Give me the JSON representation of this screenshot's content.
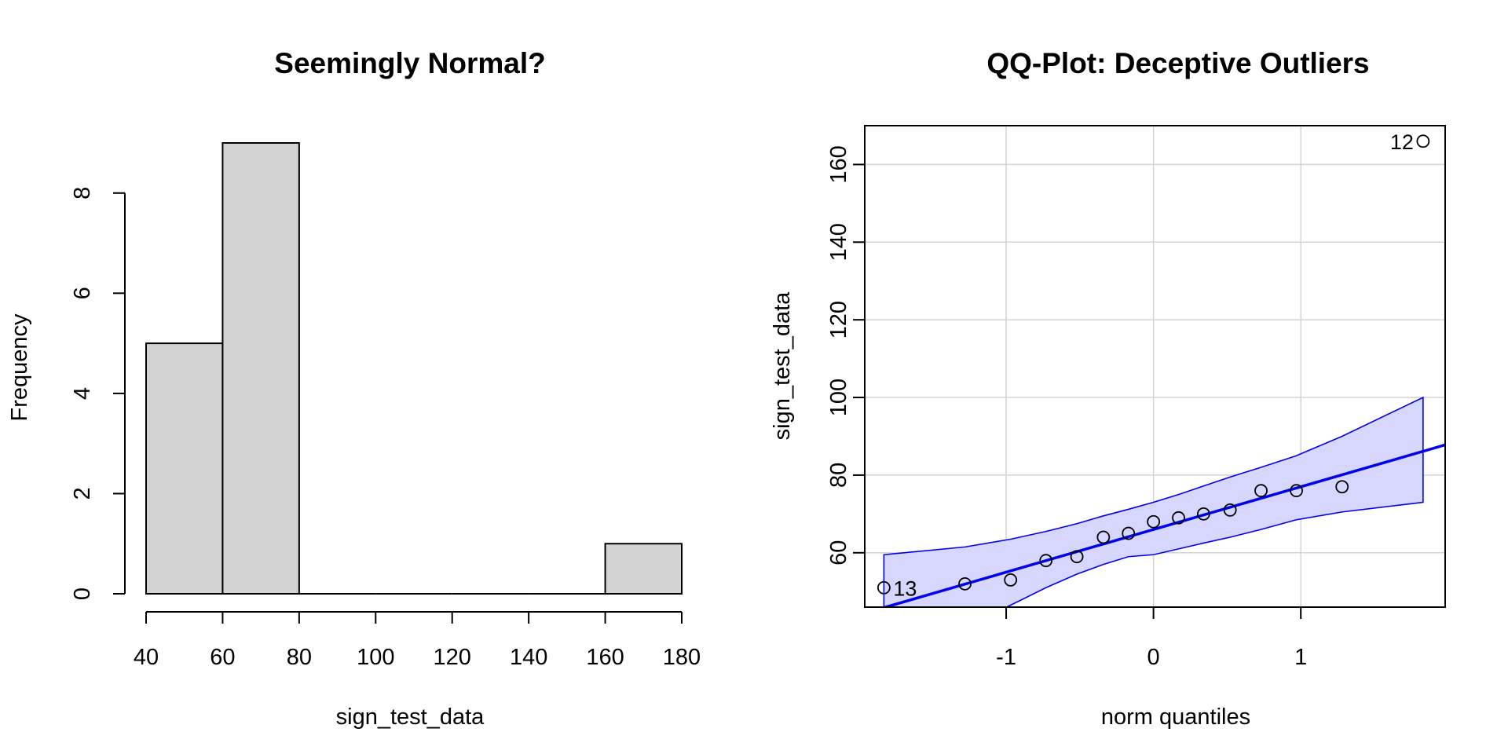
{
  "chart_data": [
    {
      "type": "bar",
      "subtype": "histogram",
      "title": "Seemingly Normal?",
      "xlabel": "sign_test_data",
      "ylabel": "Frequency",
      "bins": [
        {
          "from": 40,
          "to": 60,
          "count": 5
        },
        {
          "from": 60,
          "to": 80,
          "count": 9
        },
        {
          "from": 80,
          "to": 100,
          "count": 0
        },
        {
          "from": 100,
          "to": 120,
          "count": 0
        },
        {
          "from": 120,
          "to": 140,
          "count": 0
        },
        {
          "from": 140,
          "to": 160,
          "count": 0
        },
        {
          "from": 160,
          "to": 180,
          "count": 1
        }
      ],
      "xlim": [
        40,
        180
      ],
      "ylim": [
        0,
        9
      ],
      "x_ticks": [
        "40",
        "60",
        "80",
        "100",
        "120",
        "140",
        "160",
        "180"
      ],
      "y_ticks": [
        "0",
        "2",
        "4",
        "6",
        "8"
      ],
      "bar_color": "#d3d3d3",
      "grid": false
    },
    {
      "type": "scatter",
      "subtype": "qq-plot",
      "title": "QQ-Plot: Deceptive Outliers",
      "xlabel": "norm quantiles",
      "ylabel": "sign_test_data",
      "xlim": [
        -1.96,
        1.98
      ],
      "ylim": [
        46,
        170
      ],
      "x_ticks": [
        "-1",
        "0",
        "1"
      ],
      "y_ticks": [
        "60",
        "80",
        "100",
        "120",
        "140",
        "160"
      ],
      "points": [
        {
          "x": -1.83,
          "y": 51,
          "label": "13"
        },
        {
          "x": -1.28,
          "y": 52
        },
        {
          "x": -0.97,
          "y": 53
        },
        {
          "x": -0.73,
          "y": 58
        },
        {
          "x": -0.52,
          "y": 59
        },
        {
          "x": -0.34,
          "y": 64
        },
        {
          "x": -0.17,
          "y": 65
        },
        {
          "x": 0.0,
          "y": 68
        },
        {
          "x": 0.17,
          "y": 69
        },
        {
          "x": 0.34,
          "y": 70
        },
        {
          "x": 0.52,
          "y": 71
        },
        {
          "x": 0.73,
          "y": 76
        },
        {
          "x": 0.97,
          "y": 76
        },
        {
          "x": 1.28,
          "y": 77
        },
        {
          "x": 1.83,
          "y": 166,
          "label": "12"
        }
      ],
      "reference_line": {
        "intercept": 66.0,
        "slope": 11.0
      },
      "confidence_band": {
        "x": [
          -1.83,
          -1.28,
          -0.97,
          -0.73,
          -0.52,
          -0.34,
          -0.17,
          0.0,
          0.17,
          0.34,
          0.52,
          0.73,
          0.97,
          1.28,
          1.83
        ],
        "upper": [
          59.5,
          61.5,
          63.5,
          65.5,
          67.5,
          69.5,
          71.2,
          73.0,
          75.0,
          77.2,
          79.5,
          82.0,
          85.0,
          90.0,
          100.0
        ],
        "lower": [
          32.0,
          41.0,
          46.5,
          51.0,
          54.5,
          57.0,
          59.0,
          59.5,
          61.0,
          62.5,
          64.0,
          66.0,
          68.5,
          70.5,
          73.0
        ]
      },
      "line_color": "#0000ee",
      "band_color": "#d6d6ff",
      "grid": true
    }
  ]
}
